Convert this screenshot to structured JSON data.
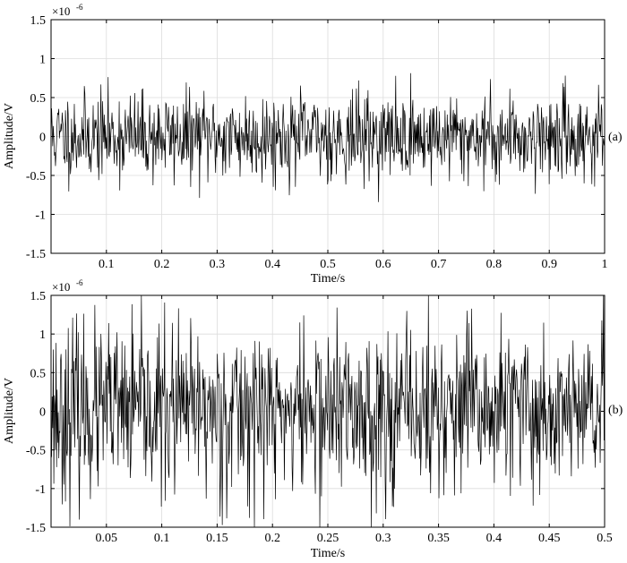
{
  "chart_data": [
    {
      "type": "line",
      "panel_label": "(a)",
      "xlabel": "Time/s",
      "ylabel": "Amplitude/V",
      "y_multiplier": "×10",
      "y_exponent": "-6",
      "xlim": [
        0,
        1
      ],
      "ylim": [
        -1.5,
        1.5
      ],
      "x_ticks": [
        0.1,
        0.2,
        0.3,
        0.4,
        0.5,
        0.6,
        0.7,
        0.8,
        0.9,
        1
      ],
      "x_tick_labels": [
        "0.1",
        "0.2",
        "0.3",
        "0.4",
        "0.5",
        "0.6",
        "0.7",
        "0.8",
        "0.9",
        "1"
      ],
      "y_ticks": [
        1.5,
        1,
        0.5,
        0,
        -0.5,
        -1,
        -1.5
      ],
      "y_tick_labels": [
        "1.5",
        "1",
        "0.5",
        "0",
        "-0.5",
        "-1",
        "-1.5"
      ],
      "grid": true,
      "signal": {
        "description_of_values": "dense noise signal",
        "n_points": 1000,
        "x_start": 0,
        "x_end": 1,
        "mean": 0,
        "std": 0.28,
        "min": -1.05,
        "max": 0.93,
        "seed": 11
      },
      "line_color": "#000000"
    },
    {
      "type": "line",
      "panel_label": "(b)",
      "xlabel": "Time/s",
      "ylabel": "Amplitude/V",
      "y_multiplier": "×10",
      "y_exponent": "-6",
      "xlim": [
        0,
        0.5
      ],
      "ylim": [
        -1.5,
        1.5
      ],
      "x_ticks": [
        0.05,
        0.1,
        0.15,
        0.2,
        0.25,
        0.3,
        0.35,
        0.4,
        0.45,
        0.5
      ],
      "x_tick_labels": [
        "0.05",
        "0.1",
        "0.15",
        "0.2",
        "0.25",
        "0.3",
        "0.35",
        "0.4",
        "0.45",
        "0.5"
      ],
      "y_ticks": [
        1.5,
        1,
        0.5,
        0,
        -0.5,
        -1,
        -1.5
      ],
      "y_tick_labels": [
        "1.5",
        "1",
        "0.5",
        "0",
        "-0.5",
        "-1",
        "-1.5"
      ],
      "grid": true,
      "signal": {
        "description_of_values": "dense noise signal",
        "n_points": 1000,
        "x_start": 0,
        "x_end": 0.5,
        "mean": 0,
        "std": 0.55,
        "min": -1.5,
        "max": 1.5,
        "seed": 23
      },
      "line_color": "#000000"
    }
  ]
}
